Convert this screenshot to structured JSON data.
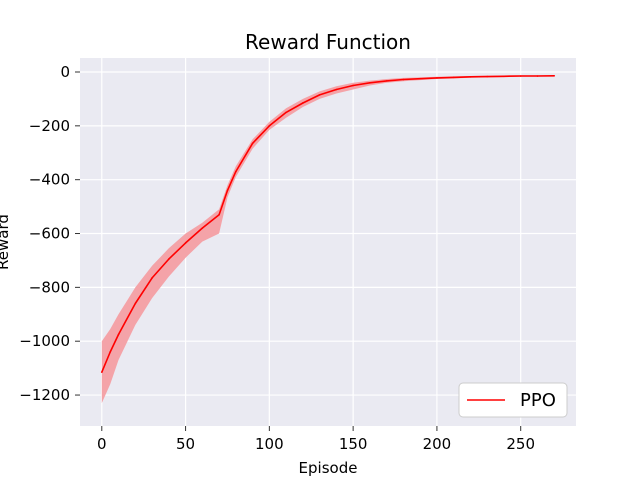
{
  "chart_data": {
    "type": "line",
    "title": "Reward Function",
    "xlabel": "Episode",
    "ylabel": "Reward",
    "xlim": [
      -13,
      283
    ],
    "ylim": [
      -1315,
      52
    ],
    "xticks": [
      0,
      50,
      100,
      150,
      200,
      250
    ],
    "yticks": [
      0,
      -200,
      -400,
      -600,
      -800,
      -1000,
      -1200
    ],
    "xtick_labels": [
      "0",
      "50",
      "100",
      "150",
      "200",
      "250"
    ],
    "ytick_labels": [
      "0",
      "−200",
      "−400",
      "−600",
      "−800",
      "−1000",
      "−1200"
    ],
    "grid": true,
    "legend_position": "lower-right",
    "colors": {
      "background": "#eaeaf2",
      "grid": "#ffffff",
      "line": "#ff0000",
      "band": "#f4a3a8"
    },
    "series": [
      {
        "name": "PPO",
        "x": [
          0,
          5,
          10,
          20,
          30,
          40,
          50,
          60,
          70,
          75,
          80,
          90,
          100,
          110,
          120,
          130,
          140,
          150,
          160,
          170,
          180,
          190,
          200,
          210,
          220,
          230,
          240,
          250,
          260,
          270
        ],
        "y": [
          -1115,
          -1040,
          -975,
          -860,
          -765,
          -695,
          -635,
          -580,
          -530,
          -440,
          -370,
          -265,
          -200,
          -150,
          -115,
          -85,
          -65,
          -50,
          -40,
          -33,
          -28,
          -25,
          -22,
          -20,
          -18,
          -17,
          -16,
          -15,
          -15,
          -14
        ],
        "upper": [
          -1000,
          -955,
          -900,
          -800,
          -720,
          -655,
          -600,
          -560,
          -510,
          -420,
          -350,
          -250,
          -185,
          -135,
          -100,
          -72,
          -53,
          -40,
          -32,
          -26,
          -22,
          -20,
          -18,
          -16,
          -15,
          -14,
          -13,
          -12,
          -12,
          -12
        ],
        "lower": [
          -1230,
          -1160,
          -1070,
          -940,
          -840,
          -760,
          -690,
          -630,
          -600,
          -465,
          -390,
          -285,
          -215,
          -170,
          -130,
          -100,
          -80,
          -65,
          -50,
          -40,
          -34,
          -30,
          -26,
          -24,
          -21,
          -20,
          -19,
          -18,
          -17,
          -16
        ]
      }
    ]
  }
}
